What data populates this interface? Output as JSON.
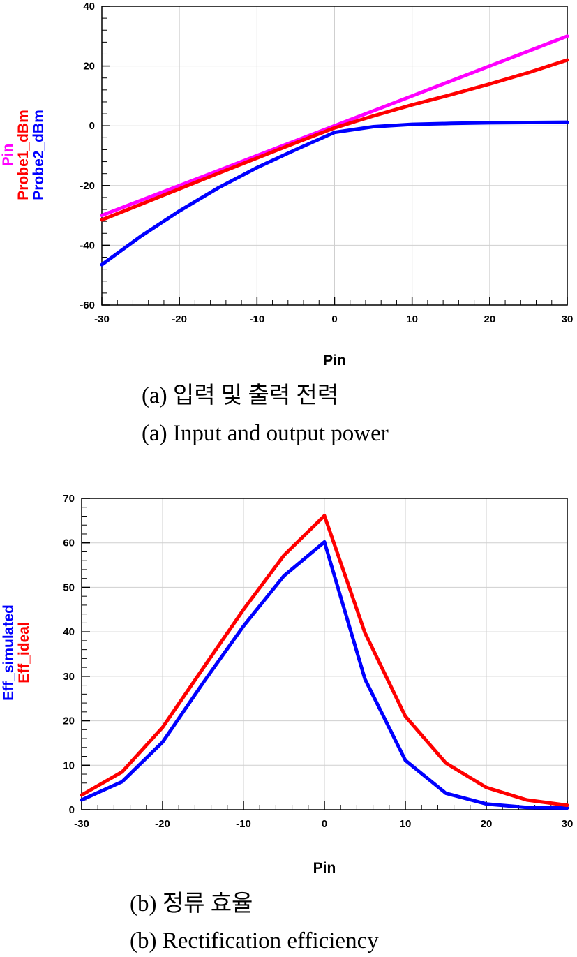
{
  "chart_data": [
    {
      "type": "line",
      "xlabel": "Pin",
      "xlim": [
        -30,
        30
      ],
      "ylim": [
        -60,
        40
      ],
      "xticks": [
        -30,
        -20,
        -10,
        0,
        10,
        20,
        30
      ],
      "yticks": [
        -60,
        -40,
        -20,
        0,
        20,
        40
      ],
      "grid": true,
      "legend_position": "left-vertical",
      "series": [
        {
          "name": "Pin",
          "color": "#ff00ff",
          "x": [
            -30,
            -25,
            -20,
            -15,
            -10,
            -5,
            0,
            5,
            10,
            15,
            20,
            25,
            30
          ],
          "y": [
            -30,
            -25,
            -20,
            -15,
            -10,
            -5,
            0,
            5,
            10,
            15,
            20,
            25,
            30
          ]
        },
        {
          "name": "Probe1_dBm",
          "color": "#ff0000",
          "x": [
            -30,
            -25,
            -20,
            -15,
            -10,
            -5,
            0,
            5,
            10,
            15,
            20,
            25,
            30
          ],
          "y": [
            -31.5,
            -26.3,
            -21.1,
            -15.9,
            -10.8,
            -5.7,
            -0.7,
            3.3,
            7.0,
            10.4,
            14.0,
            17.8,
            22.0
          ]
        },
        {
          "name": "Probe2_dBm",
          "color": "#0000ff",
          "x": [
            -30,
            -25,
            -20,
            -15,
            -10,
            -5,
            0,
            5,
            10,
            15,
            20,
            25,
            30
          ],
          "y": [
            -46.5,
            -37,
            -28.5,
            -20.8,
            -14,
            -8,
            -2.2,
            -0.3,
            0.5,
            0.8,
            1.0,
            1.1,
            1.2
          ]
        }
      ],
      "caption_ko": "(a) 입력 및 출력 전력",
      "caption_en": "(a) Input and output power"
    },
    {
      "type": "line",
      "xlabel": "Pin",
      "xlim": [
        -30,
        30
      ],
      "ylim": [
        0,
        70
      ],
      "xticks": [
        -30,
        -20,
        -10,
        0,
        10,
        20,
        30
      ],
      "yticks": [
        0,
        10,
        20,
        30,
        40,
        50,
        60,
        70
      ],
      "grid": true,
      "legend_position": "left-vertical",
      "series": [
        {
          "name": "Eff_simulated",
          "color": "#0000ff",
          "x": [
            -30,
            -25,
            -20,
            -15,
            -10,
            -5,
            0,
            5,
            10,
            15,
            20,
            25,
            30
          ],
          "y": [
            2.2,
            6.3,
            15.2,
            28.5,
            41.3,
            52.6,
            60.2,
            29.4,
            11.1,
            3.7,
            1.3,
            0.5,
            0.4
          ]
        },
        {
          "name": "Eff_ideal",
          "color": "#ff0000",
          "x": [
            -30,
            -25,
            -20,
            -15,
            -10,
            -5,
            0,
            5,
            10,
            15,
            20,
            25,
            30
          ],
          "y": [
            3.3,
            8.5,
            18.5,
            31.8,
            45.0,
            57.2,
            66.1,
            39.8,
            21.0,
            10.5,
            5.0,
            2.2,
            1.0
          ]
        }
      ],
      "caption_ko": "(b) 정류 효율",
      "caption_en": "(b) Rectification efficiency"
    }
  ]
}
